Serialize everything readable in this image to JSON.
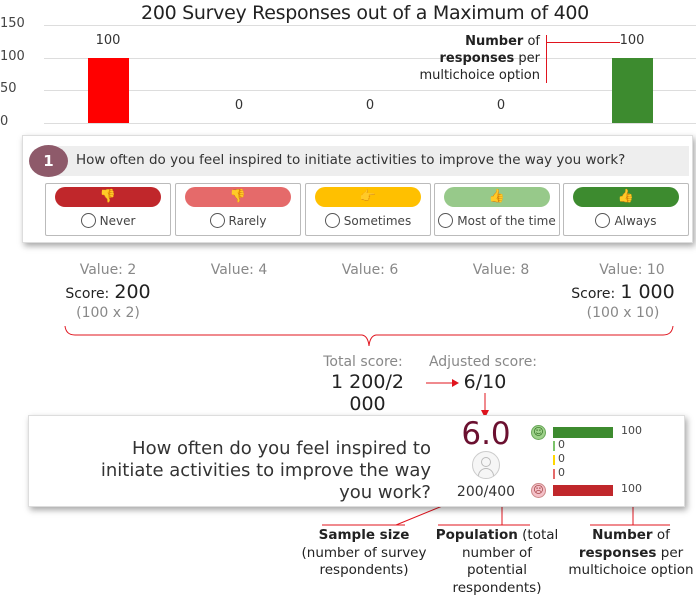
{
  "chart_data": {
    "type": "bar",
    "title": "200 Survey Responses out of a Maximum of 400",
    "categories": [
      "Never",
      "Rarely",
      "Sometimes",
      "Most of the time",
      "Always"
    ],
    "values": [
      100,
      0,
      0,
      0,
      100
    ],
    "colors": [
      "#ff0000",
      "#ff0000",
      "#ff0000",
      "#ff0000",
      "#3d8b2f"
    ],
    "yticks": [
      "0",
      "50",
      "100",
      "150"
    ],
    "ylim": [
      0,
      150
    ],
    "grid": true,
    "annotation": {
      "bold1": "Number",
      "t1": " of",
      "bold2": "responses",
      "t2": " per",
      "t3": "multichoice option"
    }
  },
  "question_card": {
    "number": "1",
    "question": "How often do you feel inspired to initiate activities to improve the way you work?",
    "options": [
      {
        "label": "Never",
        "color": "#c0272b",
        "icon": "double-thumbs-down-icon",
        "glyph": "👎"
      },
      {
        "label": "Rarely",
        "color": "#e56a6a",
        "icon": "thumbs-down-icon",
        "glyph": "👎"
      },
      {
        "label": "Sometimes",
        "color": "#ffc000",
        "icon": "thumb-sideways-icon",
        "glyph": "👉"
      },
      {
        "label": "Most of the time",
        "color": "#97c98a",
        "icon": "thumbs-up-icon",
        "glyph": "👍"
      },
      {
        "label": "Always",
        "color": "#3d8b2f",
        "icon": "double-thumbs-up-icon",
        "glyph": "👍"
      }
    ]
  },
  "scoring": {
    "values": [
      "Value: 2",
      "Value: 4",
      "Value: 6",
      "Value: 8",
      "Value: 10"
    ],
    "score_label": "Score:",
    "score_never": "200",
    "calc_never": "(100 x 2)",
    "score_always": "1 000",
    "calc_always": "(100 x 10)",
    "total_label": "Total score:",
    "total_value": "1 200/2 000",
    "adjusted_label": "Adjusted score:",
    "adjusted_value": "6/10"
  },
  "result_card": {
    "question": "How often do you feel inspired to initiate activities to improve the way you work?",
    "score": "6.0",
    "sample": "200/400",
    "distribution": [
      {
        "value": "100",
        "color": "#3d8b2f",
        "count": 100
      },
      {
        "value": "0",
        "color": "#7cc36b",
        "count": 0
      },
      {
        "value": "0",
        "color": "#ffd700",
        "count": 0
      },
      {
        "value": "0",
        "color": "#e56a6a",
        "count": 0
      },
      {
        "value": "100",
        "color": "#c0272b",
        "count": 100
      }
    ]
  },
  "annotations": {
    "sample": {
      "bold": "Sample size",
      "l2": "(number of survey",
      "l3": "respondents)"
    },
    "population": {
      "bold": "Population",
      "rest": " (total",
      "l2": "number of potential",
      "l3": "respondents)"
    },
    "responses": {
      "bold": "Number",
      "rest": " of",
      "bold2": "responses",
      "rest2": " per",
      "l3": "multichoice option"
    }
  }
}
